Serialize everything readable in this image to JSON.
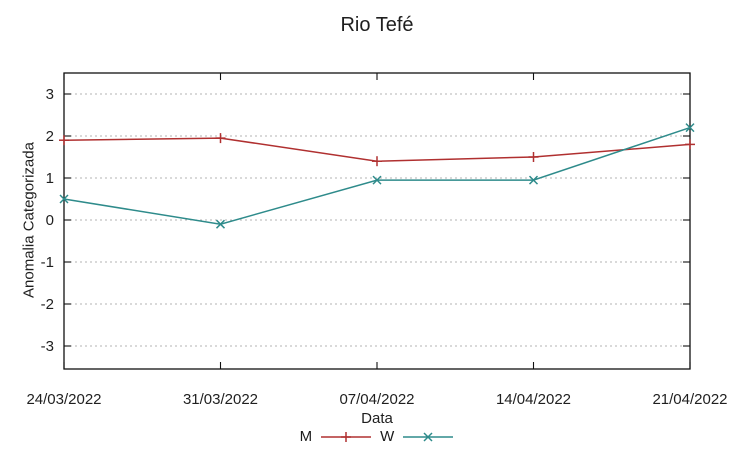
{
  "window": {
    "background": "#ffffff"
  },
  "chart_data": {
    "type": "line",
    "title": "Rio Tefé",
    "xlabel": "Data",
    "ylabel": "Anomalia Categorizada",
    "categories": [
      "24/03/2022",
      "31/03/2022",
      "07/04/2022",
      "14/04/2022",
      "21/04/2022"
    ],
    "series": [
      {
        "name": "M",
        "color": "#b03030",
        "marker": "plus",
        "values": [
          1.9,
          1.95,
          1.4,
          1.5,
          1.8
        ]
      },
      {
        "name": "W",
        "color": "#2e8b8b",
        "marker": "x",
        "values": [
          0.5,
          -0.1,
          0.95,
          0.95,
          2.2
        ]
      }
    ],
    "yticks": [
      -3,
      -2,
      -1,
      0,
      1,
      2,
      3
    ],
    "ylim": [
      -3.5,
      3.5
    ],
    "grid": "horizontal-dotted",
    "grid_color": "#b3b3b3",
    "frame_color": "#111111",
    "legend_position": "bottom-center"
  }
}
